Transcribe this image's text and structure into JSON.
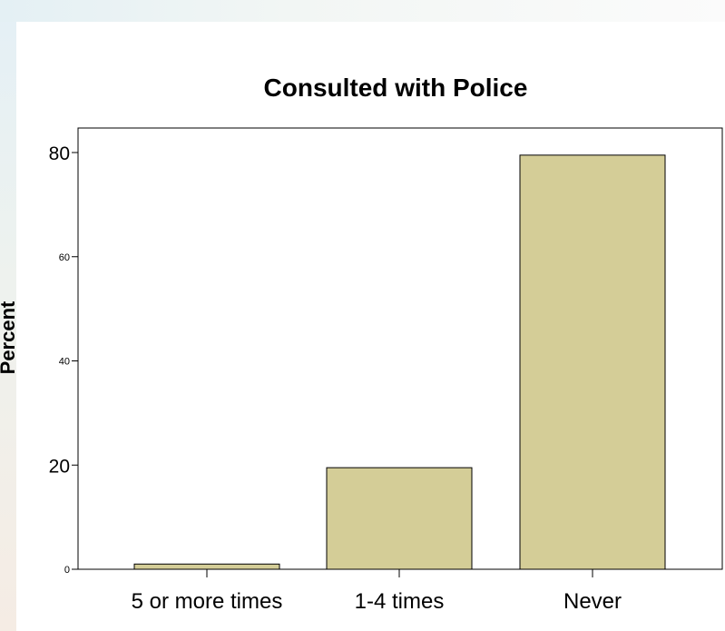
{
  "colors": {
    "bar_fill": "#d4cd97",
    "bar_stroke": "#000000",
    "axis": "#000000"
  },
  "chart_data": {
    "type": "bar",
    "title": "Consulted with Police",
    "xlabel": "",
    "ylabel": "Percent",
    "categories": [
      "5 or more times",
      "1-4 times",
      "Never"
    ],
    "values": [
      1,
      19.5,
      79.5
    ],
    "ylim": [
      0,
      80
    ],
    "yticks": [
      {
        "value": 0,
        "label": "0",
        "size": "small"
      },
      {
        "value": 20,
        "label": "20",
        "size": "big"
      },
      {
        "value": 40,
        "label": "40",
        "size": "small"
      },
      {
        "value": 60,
        "label": "60",
        "size": "small"
      },
      {
        "value": 80,
        "label": "80",
        "size": "big"
      }
    ],
    "grid": false,
    "legend": "none"
  }
}
